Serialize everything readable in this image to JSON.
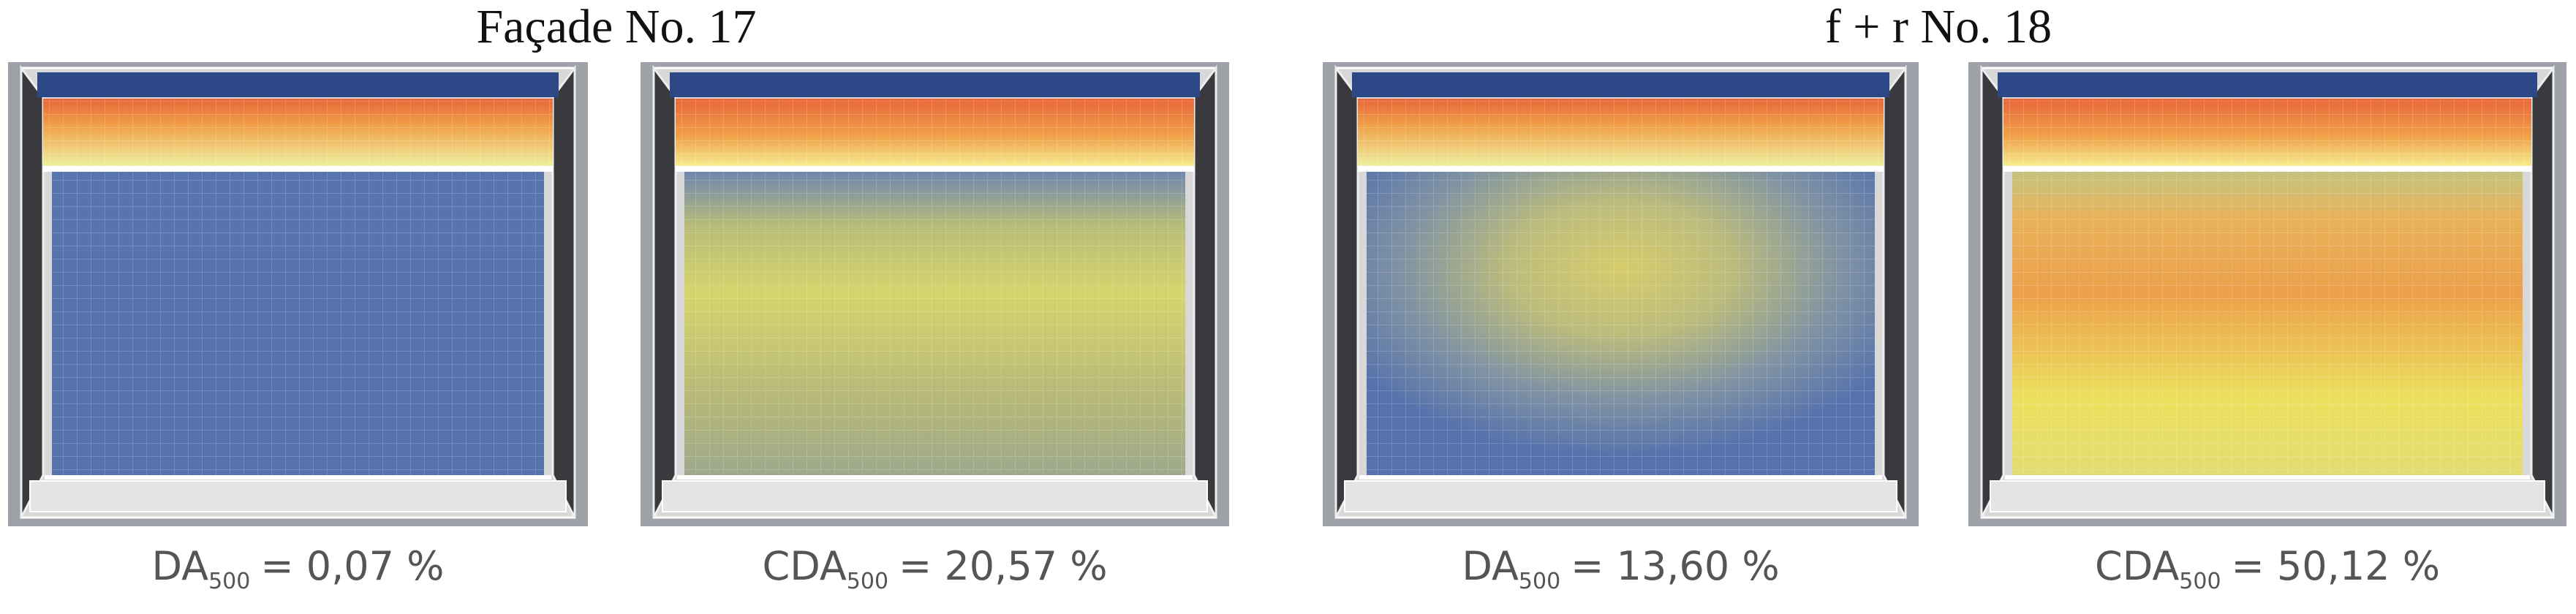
{
  "groups": [
    {
      "title": "Façade No. 17",
      "panels": [
        {
          "metric": "DA",
          "subscript": "500",
          "result": "= 0,07 %"
        },
        {
          "metric": "CDA",
          "subscript": "500",
          "result": "= 20,57 %"
        }
      ]
    },
    {
      "title": "f + r No. 18",
      "panels": [
        {
          "metric": "DA",
          "subscript": "500",
          "result": "= 13,60 %"
        },
        {
          "metric": "CDA",
          "subscript": "500",
          "result": "= 50,12 %"
        }
      ]
    }
  ]
}
